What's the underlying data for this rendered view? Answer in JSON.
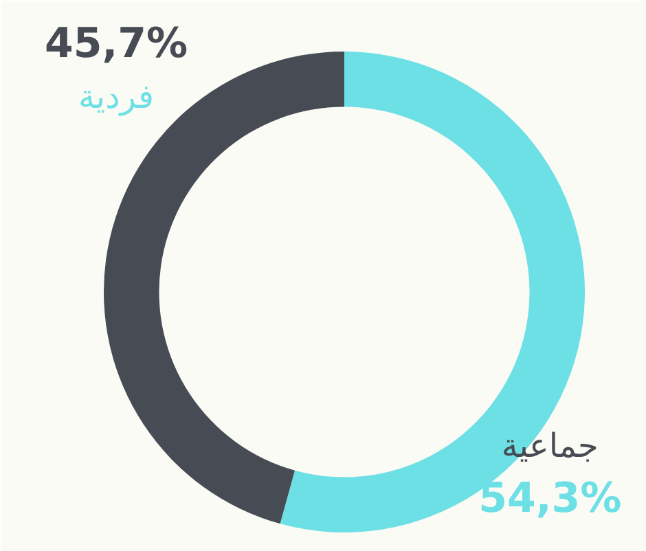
{
  "chart_data": {
    "type": "donut",
    "categories": [
      "جماعية",
      "فردية"
    ],
    "values": [
      54.3,
      45.7
    ],
    "colors": [
      "#6de0e6",
      "#474c54"
    ],
    "value_labels": [
      "54,3%",
      "45,7%"
    ]
  }
}
